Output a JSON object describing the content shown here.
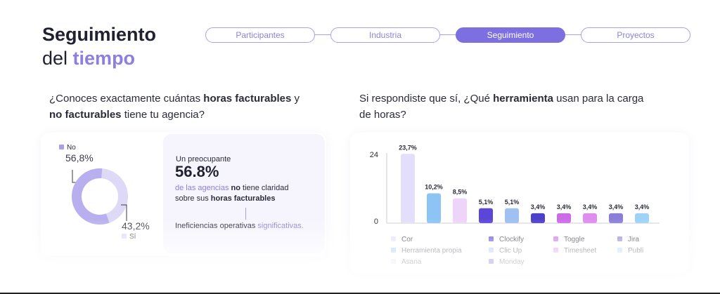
{
  "header": {
    "title_line1": "Seguimiento",
    "title_line2_a": "del ",
    "title_line2_b": "tiempo"
  },
  "steps": [
    {
      "label": "Participantes",
      "active": false
    },
    {
      "label": "Industria",
      "active": false
    },
    {
      "label": "Seguimiento",
      "active": true
    },
    {
      "label": "Proyectos",
      "active": false
    }
  ],
  "left": {
    "q_part1": "¿Conoces exactamente cuántas ",
    "q_bold1": "horas facturables",
    "q_part2": " y",
    "q_bold2": "no facturables",
    "q_part3": " tiene tu agencia?",
    "donut": {
      "no_label": "No",
      "no_value": "56,8%",
      "no_fraction": 0.568,
      "si_label": "Sí",
      "si_value": "43,2%",
      "no_color": "#b8b0ee",
      "si_color": "#ddd9f7"
    },
    "callout": {
      "intro": "Un preocupante",
      "big": "56.8%",
      "line1_accent": "de las agencias",
      "line1_bold": " no",
      "line1_rest": " tiene claridad",
      "line2_rest": "sobre sus ",
      "line2_bold": "horas facturables",
      "line3_a": "Ineficiencias operativas ",
      "line3_accent": "significativas."
    }
  },
  "right": {
    "q_part1": "Si respondiste que sí, ¿Qué ",
    "q_bold": "herramienta",
    "q_part2": " usan para la carga",
    "q_line2": "de horas?"
  },
  "chart_data": {
    "type": "bar",
    "ylim": [
      0,
      24
    ],
    "yticks": [
      "24",
      "0"
    ],
    "values": [
      23.7,
      10.2,
      8.5,
      5.1,
      5.1,
      3.4,
      3.4,
      3.4,
      3.4,
      3.4
    ],
    "labels": [
      "23,7%",
      "10,2%",
      "8,5%",
      "5,1%",
      "5,1%",
      "3,4%",
      "3,4%",
      "3,4%",
      "3,4%",
      "3,4%"
    ],
    "colors": [
      "#e3dffa",
      "#8cc5f5",
      "#efd4f9",
      "#5a46d8",
      "#9fc0f1",
      "#4c3fc9",
      "#cc6be6",
      "#df8cef",
      "#8a7fd8",
      "#9ed3f9"
    ],
    "legend": [
      {
        "name": "Cor",
        "color": "#e3dffa"
      },
      {
        "name": "Herramienta propia",
        "color": "#8cc5f5"
      },
      {
        "name": "Asana",
        "color": "#efd4f9"
      },
      {
        "name": "Clockify",
        "color": "#5a46d8"
      },
      {
        "name": "Clic Up",
        "color": "#9fc0f1"
      },
      {
        "name": "Monday",
        "color": "#4c3fc9"
      },
      {
        "name": "Toggle",
        "color": "#cc6be6"
      },
      {
        "name": "Timesheet",
        "color": "#df8cef"
      },
      {
        "name": "Jira",
        "color": "#8a7fd8"
      },
      {
        "name": "Publi",
        "color": "#9ed3f9"
      }
    ]
  }
}
